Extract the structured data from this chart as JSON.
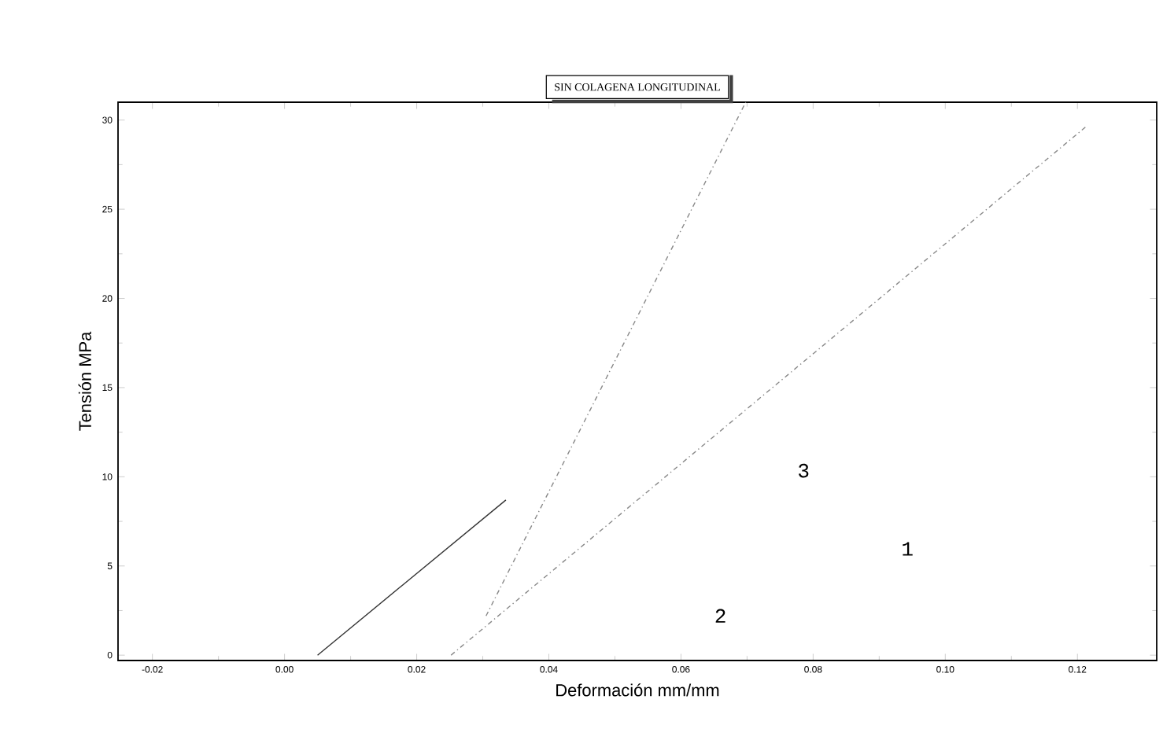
{
  "chart_data": {
    "type": "line",
    "title": "SIN COLAGENA LONGITUDINAL",
    "xlabel": "Deformación mm/mm",
    "ylabel": "Tensión MPa",
    "xlim": [
      -0.0252,
      0.132
    ],
    "ylim": [
      -0.3,
      31
    ],
    "xticks": [
      -0.02,
      {
        "value": 0,
        "label": "0.00"
      },
      0.02,
      0.04,
      0.06,
      0.08,
      {
        "value": 0.1,
        "label": "0.10"
      },
      0.12
    ],
    "yticks": [
      0,
      5,
      10,
      15,
      20,
      25,
      30
    ],
    "grid": false,
    "marker": "none",
    "series": [
      {
        "color": "#333333",
        "line_style": "solid",
        "x": [
          0.005,
          0.0335
        ],
        "values": [
          0,
          8.7
        ]
      },
      {
        "color": "#888888",
        "line_style": "dashed",
        "x": [
          0.0252,
          0.1212
        ],
        "values": [
          0,
          29.6
        ]
      },
      {
        "color": "#888888",
        "line_style": "dashed",
        "x": [
          0.0305,
          0.0698
        ],
        "values": [
          2.2,
          31
        ]
      }
    ],
    "annotations": [
      "3",
      "1",
      "2"
    ]
  }
}
